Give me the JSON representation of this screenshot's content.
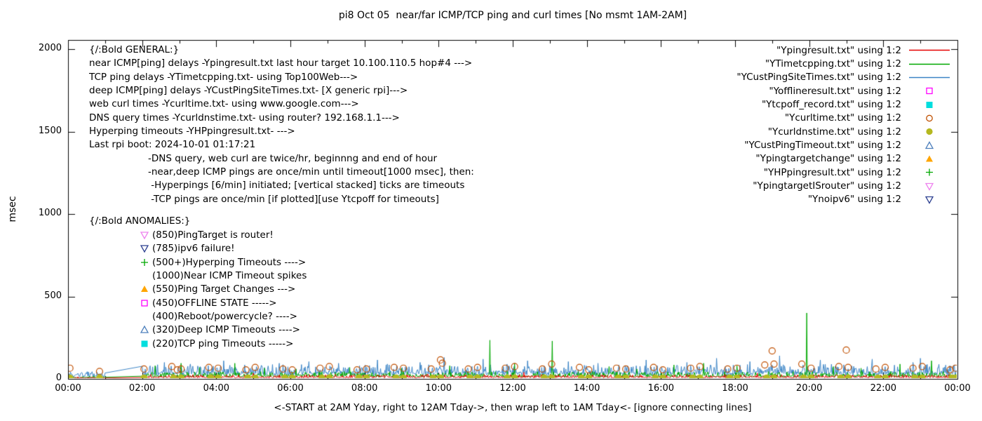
{
  "chart_data": {
    "type": "line",
    "title": "pi8 Oct 05  near/far ICMP/TCP ping and curl times [No msmt 1AM-2AM]",
    "ylabel": "msec",
    "xlabel": "<-START at 2AM Yday, right to 12AM Tday->, then wrap left to 1AM Tday<- [ignore connecting lines]",
    "ylim": [
      0,
      2000
    ],
    "yticks": [
      0,
      500,
      1000,
      1500,
      2000
    ],
    "xticks": [
      "00:00",
      "02:00",
      "04:00",
      "06:00",
      "08:00",
      "10:00",
      "12:00",
      "14:00",
      "16:00",
      "18:00",
      "20:00",
      "22:00",
      "00:00"
    ],
    "x_range_hours": [
      0,
      24
    ],
    "gap_hours": [
      1,
      2
    ],
    "grid": false,
    "legend_position": "top-right",
    "legend": [
      {
        "label": "\"Ypingresult.txt\" using 1:2",
        "style": "line",
        "color": "#e60000"
      },
      {
        "label": "\"YTimetcpping.txt\" using 1:2",
        "style": "line",
        "color": "#00a800"
      },
      {
        "label": "\"YCustPingSiteTimes.txt\" using 1:2",
        "style": "line",
        "color": "#3d85c6"
      },
      {
        "label": "\"Yofflineresult.txt\" using 1:2",
        "style": "square-open",
        "color": "#ff00ff"
      },
      {
        "label": "\"Ytcpoff_record.txt\" using 1:2",
        "style": "square-filled",
        "color": "#00dede"
      },
      {
        "label": "\"Ycurltime.txt\" using 1:2",
        "style": "circle-open",
        "color": "#c05000"
      },
      {
        "label": "\"Ycurldnstime.txt\" using 1:2",
        "style": "circle-filled",
        "color": "#b5b820"
      },
      {
        "label": "\"YCustPingTimeout.txt\" using 1:2",
        "style": "triangle-up-open",
        "color": "#4f81bd"
      },
      {
        "label": "\"Ypingtargetchange\" using 1:2",
        "style": "triangle-up-filled",
        "color": "#ffa500"
      },
      {
        "label": "\"YHPpingresult.txt\" using 1:2",
        "style": "plus",
        "color": "#00a800"
      },
      {
        "label": "\"YpingtargetISrouter\" using 1:2",
        "style": "triangle-down-open",
        "color": "#ee82ee"
      },
      {
        "label": "\"Ynoipv6\" using 1:2",
        "style": "triangle-down-open",
        "color": "#2e4191"
      }
    ],
    "lines": [
      {
        "name": "Ypingresult.txt",
        "color": "#e60000",
        "base": 8,
        "amp": 18,
        "pow": 3,
        "seed": 11,
        "spikes": [
          [
            5.0,
            35
          ],
          [
            9.7,
            30
          ],
          [
            12.3,
            40
          ],
          [
            18.6,
            35
          ],
          [
            22.2,
            30
          ]
        ]
      },
      {
        "name": "YTimetcpping.txt",
        "color": "#00a800",
        "base": 14,
        "amp": 30,
        "pow": 3,
        "seed": 22,
        "spikes": [
          [
            2.35,
            80
          ],
          [
            3.05,
            95
          ],
          [
            3.55,
            70
          ],
          [
            4.5,
            95
          ],
          [
            5.3,
            65
          ],
          [
            6.15,
            60
          ],
          [
            7.6,
            70
          ],
          [
            9.0,
            65
          ],
          [
            10.3,
            80
          ],
          [
            11.38,
            235
          ],
          [
            12.05,
            95
          ],
          [
            13.07,
            230
          ],
          [
            14.6,
            75
          ],
          [
            15.35,
            60
          ],
          [
            16.35,
            85
          ],
          [
            17.15,
            95
          ],
          [
            18.05,
            80
          ],
          [
            19.93,
            400
          ],
          [
            20.65,
            75
          ],
          [
            21.4,
            65
          ],
          [
            22.45,
            90
          ],
          [
            23.3,
            110
          ]
        ]
      },
      {
        "name": "YCustPingSiteTimes.txt",
        "color": "#3d85c6",
        "base": 28,
        "amp": 55,
        "pow": 2.4,
        "seed": 33,
        "spikes": [
          [
            2.6,
            100
          ],
          [
            3.3,
            90
          ],
          [
            4.2,
            110
          ],
          [
            5.7,
            95
          ],
          [
            6.5,
            105
          ],
          [
            7.3,
            95
          ],
          [
            8.35,
            115
          ],
          [
            9.5,
            100
          ],
          [
            10.15,
            130
          ],
          [
            11.2,
            120
          ],
          [
            12.4,
            110
          ],
          [
            13.5,
            105
          ],
          [
            14.3,
            95
          ],
          [
            15.6,
            115
          ],
          [
            16.7,
            100
          ],
          [
            17.5,
            125
          ],
          [
            18.4,
            105
          ],
          [
            19.2,
            140
          ],
          [
            20.3,
            115
          ],
          [
            21.7,
            120
          ],
          [
            22.8,
            100
          ],
          [
            23.0,
            125
          ]
        ]
      }
    ],
    "points": [
      {
        "name": "Ycurltime.txt",
        "marker": "circle-open",
        "color": "#c05000",
        "size": 4.5,
        "data": [
          [
            0.05,
            65
          ],
          [
            0.85,
            45
          ],
          [
            2.05,
            60
          ],
          [
            2.8,
            75
          ],
          [
            2.95,
            55
          ],
          [
            3.05,
            60
          ],
          [
            3.8,
            70
          ],
          [
            4.05,
            65
          ],
          [
            4.8,
            55
          ],
          [
            5.05,
            70
          ],
          [
            5.8,
            60
          ],
          [
            6.05,
            55
          ],
          [
            6.8,
            65
          ],
          [
            7.05,
            75
          ],
          [
            7.8,
            55
          ],
          [
            8.05,
            60
          ],
          [
            8.8,
            70
          ],
          [
            9.05,
            65
          ],
          [
            9.8,
            60
          ],
          [
            10.05,
            115
          ],
          [
            10.1,
            95
          ],
          [
            10.8,
            60
          ],
          [
            11.05,
            70
          ],
          [
            11.8,
            65
          ],
          [
            12.05,
            75
          ],
          [
            12.8,
            60
          ],
          [
            13.05,
            90
          ],
          [
            13.8,
            70
          ],
          [
            14.05,
            55
          ],
          [
            14.8,
            65
          ],
          [
            15.05,
            60
          ],
          [
            15.8,
            70
          ],
          [
            16.05,
            55
          ],
          [
            16.8,
            65
          ],
          [
            17.05,
            75
          ],
          [
            17.8,
            60
          ],
          [
            18.05,
            65
          ],
          [
            18.8,
            85
          ],
          [
            19.0,
            170
          ],
          [
            19.05,
            90
          ],
          [
            19.8,
            90
          ],
          [
            20.05,
            65
          ],
          [
            20.8,
            75
          ],
          [
            21.0,
            175
          ],
          [
            21.05,
            70
          ],
          [
            21.8,
            60
          ],
          [
            22.05,
            70
          ],
          [
            22.8,
            65
          ],
          [
            23.05,
            75
          ],
          [
            23.8,
            55
          ],
          [
            23.95,
            65
          ]
        ]
      },
      {
        "name": "Ycurldnstime.txt",
        "marker": "circle-filled",
        "color": "#b5b820",
        "size": 5,
        "data": [
          [
            0.05,
            5
          ],
          [
            0.85,
            5
          ],
          [
            2.05,
            5
          ],
          [
            2.85,
            5
          ],
          [
            3.05,
            5
          ],
          [
            3.85,
            5
          ],
          [
            4.05,
            5
          ],
          [
            4.85,
            5
          ],
          [
            5.05,
            5
          ],
          [
            5.85,
            5
          ],
          [
            6.05,
            5
          ],
          [
            6.85,
            5
          ],
          [
            7.05,
            5
          ],
          [
            7.85,
            5
          ],
          [
            8.05,
            5
          ],
          [
            8.85,
            5
          ],
          [
            9.05,
            5
          ],
          [
            9.85,
            5
          ],
          [
            10.05,
            5
          ],
          [
            10.85,
            5
          ],
          [
            11.05,
            5
          ],
          [
            11.85,
            5
          ],
          [
            12.05,
            5
          ],
          [
            12.85,
            5
          ],
          [
            13.05,
            5
          ],
          [
            13.85,
            5
          ],
          [
            14.05,
            5
          ],
          [
            14.85,
            5
          ],
          [
            15.05,
            5
          ],
          [
            15.85,
            5
          ],
          [
            16.05,
            5
          ],
          [
            16.85,
            5
          ],
          [
            17.05,
            5
          ],
          [
            17.85,
            5
          ],
          [
            18.05,
            5
          ],
          [
            18.85,
            5
          ],
          [
            19.05,
            5
          ],
          [
            19.85,
            5
          ],
          [
            20.05,
            5
          ],
          [
            20.85,
            5
          ],
          [
            21.05,
            5
          ],
          [
            21.85,
            5
          ],
          [
            22.05,
            5
          ],
          [
            22.85,
            5
          ],
          [
            23.05,
            5
          ],
          [
            23.85,
            5
          ],
          [
            23.97,
            5
          ]
        ]
      }
    ],
    "annotations": {
      "general": [
        "{/:Bold GENERAL:}",
        "near ICMP[ping] delays -Ypingresult.txt last hour target 10.100.110.5 hop#4 --->",
        "TCP ping delays -YTimetcpping.txt- using Top100Web--->",
        "deep ICMP[ping] delays -YCustPingSiteTimes.txt- [X generic rpi]--->",
        "web curl times -Ycurltime.txt- using www.google.com--->",
        "DNS query times -Ycurldnstime.txt- using router? 192.168.1.1--->",
        "Hyperping timeouts -YHPpingresult.txt- --->",
        "Last rpi boot: 2024-10-01 01:17:21"
      ],
      "notes": [
        "-DNS query, web curl are twice/hr, beginnng and end of hour",
        "-near,deep ICMP pings are once/min until timeout[1000 msec], then:",
        " -Hyperpings [6/min] initiated; [vertical stacked] ticks are timeouts",
        " -TCP pings are once/min [if plotted][use Ytcpoff for timeouts]"
      ],
      "anomalies_title": "{/:Bold ANOMALIES:}",
      "anomalies": [
        {
          "marker": "triangle-down-open",
          "color": "#ee82ee",
          "label": "(850)PingTarget is router!"
        },
        {
          "marker": "triangle-down-open",
          "color": "#2e4191",
          "label": "(785)ipv6 failure!"
        },
        {
          "marker": "plus",
          "color": "#00a800",
          "label": "(500+)Hyperping Timeouts ---->"
        },
        {
          "marker": "none",
          "color": "",
          "label": "(1000)Near ICMP Timeout spikes"
        },
        {
          "marker": "triangle-up-filled",
          "color": "#ffa500",
          "label": "(550)Ping Target Changes --->"
        },
        {
          "marker": "square-open",
          "color": "#ff00ff",
          "label": "(450)OFFLINE STATE ----->"
        },
        {
          "marker": "none",
          "color": "",
          "label": "(400)Reboot/powercycle? ---->"
        },
        {
          "marker": "triangle-up-open",
          "color": "#4f81bd",
          "label": "(320)Deep ICMP Timeouts ---->"
        },
        {
          "marker": "square-filled",
          "color": "#00dede",
          "label": "(220)TCP ping Timeouts ----->"
        }
      ]
    }
  }
}
